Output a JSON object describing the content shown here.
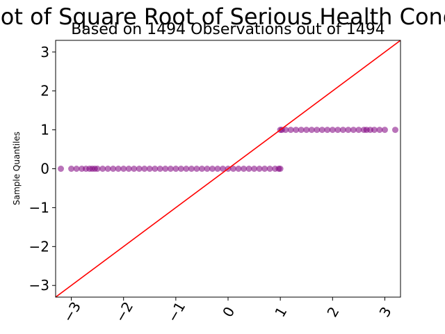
{
  "chart_data": {
    "type": "scatter",
    "title": "QQ Plot of Square Root of Serious Health Conditions",
    "subtitle": "Based on 1494 Observations out of 1494",
    "xlabel": "",
    "ylabel": "Sample Quantiles",
    "xlim": [
      -3.3,
      3.3
    ],
    "ylim": [
      -3.3,
      3.3
    ],
    "x_ticks": [
      -3,
      -2,
      -1,
      0,
      1,
      2,
      3
    ],
    "x_tick_labels": [
      "−3",
      "−2",
      "−1",
      "0",
      "1",
      "2",
      "3"
    ],
    "y_ticks": [
      -3,
      -2,
      -1,
      0,
      1,
      2,
      3
    ],
    "y_tick_labels": [
      "−3",
      "−2",
      "−1",
      "0",
      "1",
      "2",
      "3"
    ],
    "grid": false,
    "marker_color": "#800080",
    "marker_alpha": 0.55,
    "reference_line": {
      "slope": 1,
      "intercept": 0,
      "color": "#ff0000"
    },
    "series": [
      {
        "x": [
          -3.2,
          -3.0,
          -2.9,
          -2.8,
          -2.72,
          -2.65,
          -2.6,
          -2.55,
          -2.5,
          -2.4,
          -2.3,
          -2.2,
          -2.1,
          -2.0,
          -1.9,
          -1.8,
          -1.7,
          -1.6,
          -1.5,
          -1.4,
          -1.3,
          -1.2,
          -1.1,
          -1.0,
          -0.9,
          -0.8,
          -0.7,
          -0.6,
          -0.5,
          -0.4,
          -0.3,
          -0.2,
          -0.1,
          0.0,
          0.1,
          0.2,
          0.3,
          0.4,
          0.5,
          0.6,
          0.7,
          0.8,
          0.9,
          0.97,
          1.0
        ],
        "y": [
          0,
          0,
          0,
          0,
          0,
          0,
          0,
          0,
          0,
          0,
          0,
          0,
          0,
          0,
          0,
          0,
          0,
          0,
          0,
          0,
          0,
          0,
          0,
          0,
          0,
          0,
          0,
          0,
          0,
          0,
          0,
          0,
          0,
          0,
          0,
          0,
          0,
          0,
          0,
          0,
          0,
          0,
          0,
          0,
          0
        ]
      },
      {
        "x": [
          1.0,
          1.03,
          1.1,
          1.2,
          1.3,
          1.4,
          1.5,
          1.6,
          1.7,
          1.8,
          1.9,
          2.0,
          2.1,
          2.2,
          2.3,
          2.4,
          2.5,
          2.6,
          2.65,
          2.72,
          2.8,
          2.9,
          3.0,
          3.2
        ],
        "y": [
          1,
          1,
          1,
          1,
          1,
          1,
          1,
          1,
          1,
          1,
          1,
          1,
          1,
          1,
          1,
          1,
          1,
          1,
          1,
          1,
          1,
          1,
          1,
          1
        ]
      }
    ]
  }
}
